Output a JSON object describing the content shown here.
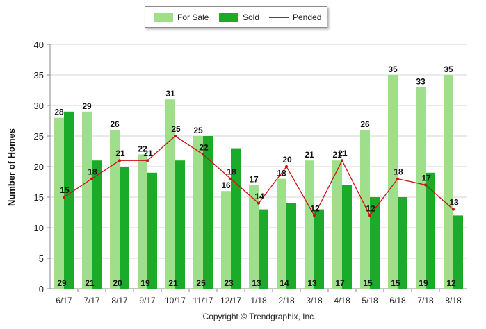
{
  "chart_data": {
    "type": "bar",
    "categories": [
      "6/17",
      "7/17",
      "8/17",
      "9/17",
      "10/17",
      "11/17",
      "12/17",
      "1/18",
      "2/18",
      "3/18",
      "4/18",
      "5/18",
      "6/18",
      "7/18",
      "8/18"
    ],
    "series": [
      {
        "name": "For Sale",
        "kind": "bar",
        "color": "#9fdf8c",
        "values": [
          28,
          29,
          26,
          22,
          31,
          25,
          16,
          17,
          18,
          21,
          21,
          26,
          35,
          33,
          35
        ]
      },
      {
        "name": "Sold",
        "kind": "bar",
        "color": "#1aab2a",
        "values": [
          29,
          21,
          20,
          19,
          21,
          25,
          23,
          13,
          14,
          13,
          17,
          15,
          15,
          19,
          12
        ]
      },
      {
        "name": "Pended",
        "kind": "line",
        "color": "#cc1111",
        "values": [
          15,
          18,
          21,
          21,
          25,
          22,
          18,
          14,
          20,
          12,
          21,
          12,
          18,
          17,
          13
        ]
      }
    ],
    "ylabel": "Number of Homes",
    "xlabel": "",
    "ylim": [
      0,
      40
    ],
    "yticks": [
      0,
      5,
      10,
      15,
      20,
      25,
      30,
      35,
      40
    ],
    "grid": true,
    "legend": "top-center",
    "footer": "Copyright © Trendgraphix, Inc."
  }
}
